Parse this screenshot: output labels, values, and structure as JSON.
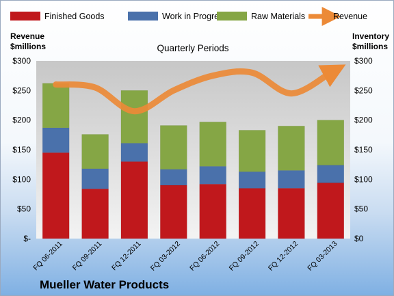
{
  "chart_data": {
    "type": "bar",
    "stacked": true,
    "title": "Quarterly Periods",
    "company": "Mueller Water Products",
    "left_axis_label": [
      "Revenue",
      "$millions"
    ],
    "right_axis_label": [
      "Inventory",
      "$millions"
    ],
    "categories": [
      "FQ 06-2011",
      "FQ 09-2011",
      "FQ 12-2011",
      "FQ 03-2012",
      "FQ 06-2012",
      "FQ 09-2012",
      "FQ 12-2012",
      "FQ 03-2013"
    ],
    "ylim": [
      0,
      300
    ],
    "y_ticks": [
      0,
      50,
      100,
      150,
      200,
      250,
      300
    ],
    "left_tick_labels": [
      "$-",
      "$50",
      "$100",
      "$150",
      "$200",
      "$250",
      "$300"
    ],
    "right_tick_labels": [
      "$0",
      "$50",
      "$100",
      "$150",
      "$200",
      "$250",
      "$300"
    ],
    "series": [
      {
        "name": "Finished Goods",
        "color": "#c0181c",
        "values": [
          145,
          84,
          130,
          90,
          92,
          85,
          85,
          94
        ]
      },
      {
        "name": "Work in Progress",
        "color": "#4a71ab",
        "values": [
          42,
          34,
          31,
          27,
          30,
          28,
          30,
          30
        ]
      },
      {
        "name": "Raw Materials",
        "color": "#85a645",
        "values": [
          75,
          58,
          89,
          74,
          75,
          70,
          75,
          76
        ]
      }
    ],
    "line_series": {
      "name": "Revenue",
      "color": "#ec8a37",
      "values": [
        260,
        255,
        215,
        250,
        275,
        280,
        245,
        280
      ]
    },
    "legend_position": "top",
    "grid": false
  }
}
